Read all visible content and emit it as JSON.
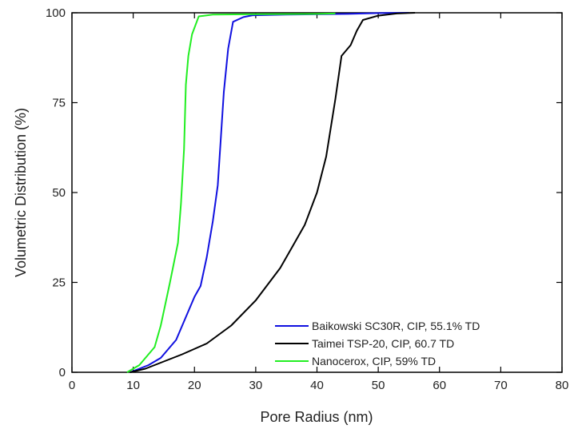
{
  "chart_data": {
    "type": "line",
    "title": "",
    "xlabel": "Pore Radius (nm)",
    "ylabel": "Volumetric Distribution (%)",
    "xlim": [
      0,
      80
    ],
    "ylim": [
      0,
      100
    ],
    "xticks": [
      0,
      10,
      20,
      30,
      40,
      50,
      60,
      70,
      80
    ],
    "yticks": [
      0,
      25,
      50,
      75,
      100
    ],
    "grid": false,
    "legend_position": "bottom-right",
    "series": [
      {
        "name": "Baikowski SC30R, CIP, 55.1% TD",
        "color": "#1010e0",
        "points": [
          [
            9.5,
            0
          ],
          [
            11,
            1
          ],
          [
            12.5,
            2
          ],
          [
            14.5,
            4
          ],
          [
            17,
            9
          ],
          [
            18.5,
            15
          ],
          [
            20,
            21
          ],
          [
            21,
            24
          ],
          [
            22,
            32
          ],
          [
            23,
            42
          ],
          [
            23.8,
            52
          ],
          [
            24.3,
            65
          ],
          [
            24.8,
            78
          ],
          [
            25.5,
            90
          ],
          [
            26.3,
            97.5
          ],
          [
            28,
            98.8
          ],
          [
            29.5,
            99.3
          ],
          [
            35,
            99.5
          ],
          [
            45,
            99.7
          ],
          [
            50,
            99.9
          ],
          [
            55,
            100
          ]
        ]
      },
      {
        "name": "Taimei TSP-20, CIP,  60.7 TD",
        "color": "#000000",
        "points": [
          [
            9.5,
            0
          ],
          [
            12,
            1
          ],
          [
            15,
            3
          ],
          [
            18,
            5
          ],
          [
            22,
            8
          ],
          [
            26,
            13
          ],
          [
            30,
            20
          ],
          [
            34,
            29
          ],
          [
            36,
            35
          ],
          [
            38,
            41
          ],
          [
            40,
            50
          ],
          [
            41.5,
            60
          ],
          [
            43,
            76
          ],
          [
            44,
            88
          ],
          [
            45.5,
            91
          ],
          [
            46.5,
            95
          ],
          [
            47.5,
            98
          ],
          [
            50,
            99.2
          ],
          [
            53,
            99.8
          ],
          [
            56,
            100
          ]
        ]
      },
      {
        "name": "Nanocerox, CIP, 59% TD",
        "color": "#22ee22",
        "points": [
          [
            9,
            0
          ],
          [
            11,
            2
          ],
          [
            13.5,
            7
          ],
          [
            14.5,
            13
          ],
          [
            16,
            25
          ],
          [
            17.3,
            36
          ],
          [
            17.8,
            47
          ],
          [
            18.3,
            62
          ],
          [
            18.6,
            80
          ],
          [
            19,
            88
          ],
          [
            19.6,
            94
          ],
          [
            20.7,
            99
          ],
          [
            23,
            99.5
          ],
          [
            30,
            99.6
          ],
          [
            40,
            99.7
          ],
          [
            43,
            99.8
          ]
        ]
      }
    ]
  }
}
